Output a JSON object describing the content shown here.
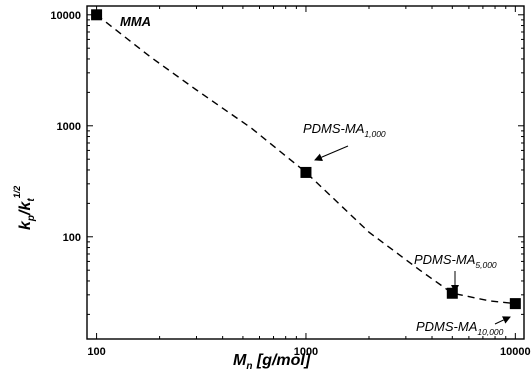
{
  "chart_data": {
    "type": "scatter",
    "x_scale": "log",
    "y_scale": "log",
    "xlim": [
      90,
      11000
    ],
    "ylim": [
      12,
      12000
    ],
    "grid": false,
    "x_ticks": [
      {
        "value": 100,
        "label": "100"
      },
      {
        "value": 1000,
        "label": "1000"
      },
      {
        "value": 10000,
        "label": "10000"
      }
    ],
    "y_ticks": [
      {
        "value": 100,
        "label": "100"
      },
      {
        "value": 1000,
        "label": "1000"
      },
      {
        "value": 10000,
        "label": "10000"
      }
    ],
    "xlabel": {
      "base": "M",
      "sub": "n",
      "rest": " [g/mol]"
    },
    "ylabel": {
      "k": "k",
      "p": "p",
      "slash": "/k",
      "t": "t",
      "exp": "1/2"
    },
    "series": [
      {
        "marker": "square",
        "color": "#000000",
        "points": [
          {
            "x": 100,
            "y": 10000
          },
          {
            "x": 1000,
            "y": 380
          },
          {
            "x": 5000,
            "y": 31
          },
          {
            "x": 10000,
            "y": 25
          }
        ]
      }
    ],
    "trend_line": {
      "style": "dashed",
      "points": [
        {
          "x": 100,
          "y": 10000
        },
        {
          "x": 180,
          "y": 4200
        },
        {
          "x": 300,
          "y": 2100
        },
        {
          "x": 550,
          "y": 950
        },
        {
          "x": 1000,
          "y": 380
        },
        {
          "x": 2000,
          "y": 110
        },
        {
          "x": 3500,
          "y": 50
        },
        {
          "x": 5000,
          "y": 31
        },
        {
          "x": 7500,
          "y": 26.5
        },
        {
          "x": 10000,
          "y": 25
        }
      ]
    },
    "annotations": [
      {
        "id": "mma",
        "main": "MMA",
        "sub": ""
      },
      {
        "id": "pdms1000",
        "main": "PDMS-MA",
        "sub": "1,000"
      },
      {
        "id": "pdms5000",
        "main": "PDMS-MA",
        "sub": "5,000"
      },
      {
        "id": "pdms10000",
        "main": "PDMS-MA",
        "sub": "10,000"
      }
    ]
  }
}
